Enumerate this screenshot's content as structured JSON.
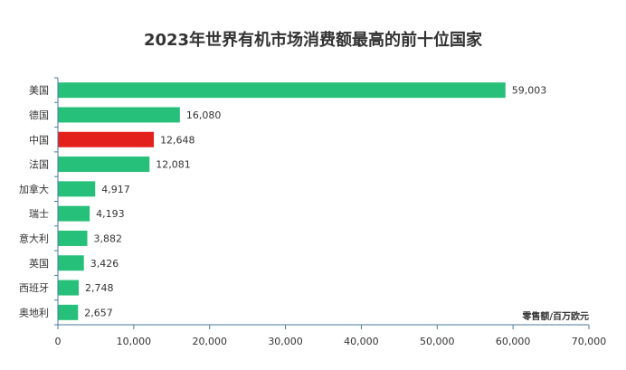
{
  "chart_data": {
    "type": "bar",
    "orientation": "horizontal",
    "title": "2023年世界有机市场消费额最高的前十位国家",
    "unit_label": "零售额/百万欧元",
    "categories": [
      "美国",
      "德国",
      "中国",
      "法国",
      "加拿大",
      "瑞士",
      "意大利",
      "英国",
      "西班牙",
      "奥地利"
    ],
    "values": [
      59003,
      16080,
      12648,
      12081,
      4917,
      4193,
      3882,
      3426,
      2748,
      2657
    ],
    "value_labels": [
      "59,003",
      "16,080",
      "12,648",
      "12,081",
      "4,917",
      "4,193",
      "3,882",
      "3,426",
      "2,748",
      "2,657"
    ],
    "highlight": "中国",
    "xlim": [
      0,
      70000
    ],
    "x_ticks": [
      0,
      10000,
      20000,
      30000,
      40000,
      50000,
      60000,
      70000
    ],
    "x_tick_labels": [
      "0",
      "10,000",
      "20,000",
      "30,000",
      "40,000",
      "50,000",
      "60,000",
      "70,000"
    ],
    "grid": false,
    "legend": "none",
    "colors": {
      "bar": "#27c07a",
      "highlight": "#e3201b",
      "axis": "#4a7a9b"
    }
  }
}
